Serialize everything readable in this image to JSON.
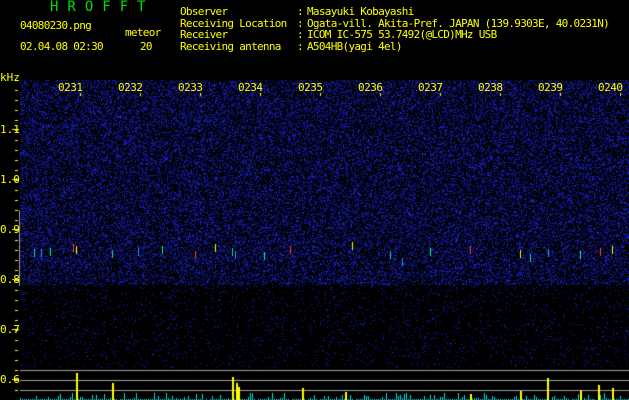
{
  "app_title": "HROFFT",
  "file_name": "04080230.png",
  "datetime": "02.04.08 02:30",
  "meteor_label": "meteor",
  "meteor_count": "20",
  "info": [
    {
      "label": "Observer",
      "value": "Masayuki Kobayashi"
    },
    {
      "label": "Receiving Location",
      "value": "Ogata-vill. Akita-Pref. JAPAN (139.9303E, 40.0231N)"
    },
    {
      "label": "Receiver",
      "value": "ICOM IC-575 53.7492(@LCD)MHz USB"
    },
    {
      "label": "Receiving antenna",
      "value": "A504HB(yagi 4el)"
    }
  ],
  "y_unit": "kHz",
  "y_ticks": [
    "1.1",
    "1.0",
    "0.9",
    "0.8",
    "0.7",
    "0.6"
  ],
  "time_ticks": [
    "0231",
    "0232",
    "0233",
    "0234",
    "0235",
    "0236",
    "0237",
    "0238",
    "0239",
    "0240"
  ],
  "colors": {
    "text": "#ffff00",
    "title": "#00e000",
    "noise": "#1020c0",
    "histogram": "#00e0e0",
    "meteor_bar": "#ffff00"
  }
}
